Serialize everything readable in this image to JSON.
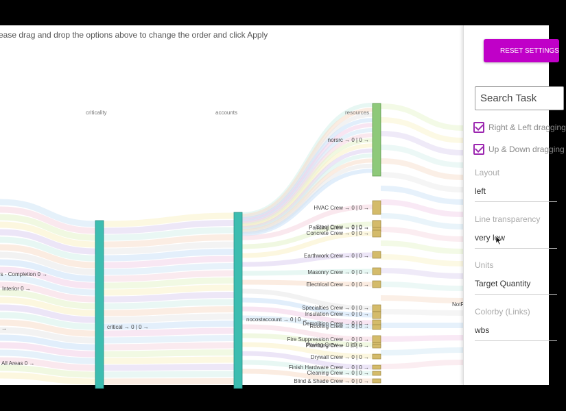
{
  "instruction": "ease drag and drop the options above to change the order and click Apply",
  "columns": [
    {
      "key": "criticality",
      "title": "criticality"
    },
    {
      "key": "accounts",
      "title": "accounts"
    },
    {
      "key": "resources",
      "title": "resources"
    }
  ],
  "left_labels": [
    "rs - Completion 0 →",
    "Interior 0 →",
    "→",
    "All Areas 0 →"
  ],
  "nodes": {
    "criticality": "critical → 0 | 0 →",
    "accounts": "nocostaccount → 0 | 0 →",
    "resources": [
      "norsrc → 0 | 0 →",
      "HVAC Crew → 0 | 0 →",
      "Painting Crew → 0 | 0 →",
      "Steel Crew → 0 | 0 →",
      "Concrete Crew → 0 | 0 →",
      "Earthwork Crew → 0 | 0 →",
      "Masonry Crew → 0 | 0 →",
      "Electrical Crew → 0 | 0 →",
      "Specialties Crew → 0 | 0 →",
      "Insulation Crew → 0 | 0 →",
      "Demolition Crew → 0 | 0 →",
      "Roofing Crew → 0 | 0 →",
      "Fire Suppression Crew → 0 | 0 →",
      "Plumbing Crew → 0 | 0 →",
      "Paving Crew → 0 | 0 →",
      "Drywall Crew → 0 | 0 →",
      "Finish Hardware Crew → 0 | 0 →",
      "Cleaning Crew → 0 | 0 →",
      "Blind & Shade Crew → 0 | 0 →"
    ],
    "right_edge": "NotR"
  },
  "colors": {
    "node_teal": "#3dbdb0",
    "node_green": "#8ec97a",
    "node_tan": "#d4bb6a",
    "accent": "#c000c8"
  },
  "panel": {
    "reset_label": "RESET SETTINGS",
    "search_placeholder": "Search Task",
    "checkbox_lr": "Right & Left dragging",
    "checkbox_ud": "Up & Down dragging",
    "layout_label": "Layout",
    "layout_value": "left",
    "transparency_label": "Line transparency",
    "transparency_value": "very low",
    "units_label": "Units",
    "units_value": "Target Quantity",
    "colorby_label": "Colorby (Links)",
    "colorby_value": "wbs"
  }
}
